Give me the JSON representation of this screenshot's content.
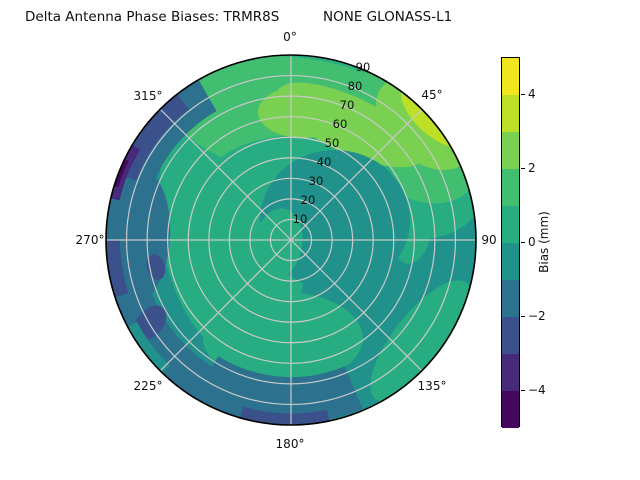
{
  "title": {
    "left": "Delta Antenna Phase Biases: TRMR8S",
    "right": "NONE GLONASS-L1"
  },
  "polar": {
    "angular_labels": [
      "0°",
      "45°",
      "90",
      "135°",
      "180°",
      "225°",
      "270°",
      "315°"
    ],
    "radial_labels": [
      "10",
      "20",
      "30",
      "40",
      "50",
      "60",
      "70",
      "80",
      "90"
    ]
  },
  "colorbar": {
    "label": "Bias (mm)",
    "ticks": [
      {
        "text": "4",
        "value": 4
      },
      {
        "text": "2",
        "value": 2
      },
      {
        "text": "0",
        "value": 0
      },
      {
        "text": "−2",
        "value": -2
      },
      {
        "text": "−4",
        "value": -4
      }
    ],
    "band_colors_top_to_bottom": [
      "#f1e51d",
      "#bddf26",
      "#7ad151",
      "#42be71",
      "#27ad81",
      "#21918c",
      "#2c718e",
      "#3b518b",
      "#472a7a",
      "#46085c"
    ]
  },
  "colors": {
    "v0": "#46085c",
    "v1": "#472a7a",
    "v2": "#3b518b",
    "v3": "#2c718e",
    "v4": "#21918c",
    "v5": "#27ad81",
    "v6": "#42be71",
    "v7": "#7ad151",
    "v8": "#bddf26",
    "v9": "#f1e51d",
    "grid": "#c9c9c9",
    "outline": "#000000"
  },
  "chart_data": {
    "type": "heatmap",
    "projection": "polar",
    "title": "Delta Antenna Phase Biases: TRMR8S        NONE GLONASS-L1",
    "colorbar_label": "Bias (mm)",
    "colormap": "viridis, 10 discrete bands",
    "value_range_mm": [
      -5,
      5
    ],
    "contour_levels_mm": [
      -5,
      -4,
      -3,
      -2,
      -1,
      0,
      1,
      2,
      3,
      4,
      5
    ],
    "azimuth_ticks_deg": [
      0,
      45,
      90,
      135,
      180,
      225,
      270,
      315
    ],
    "radial_ticks_deg": [
      10,
      20,
      30,
      40,
      50,
      60,
      70,
      80,
      90
    ],
    "legend_position": "right colorbar",
    "grid": true,
    "features": [
      {
        "region": "outer edge near azimuth 45°",
        "bias_mm": "+3 to +5",
        "note": "maximum, yellow-green/yellow wedge"
      },
      {
        "region": "north lobe, azimuth ~345°–25°, radius 55–90",
        "bias_mm": "+2 to +3",
        "note": "light green blob"
      },
      {
        "region": "broad arc across top and NE edge",
        "bias_mm": "+1 to +2",
        "note": "green band"
      },
      {
        "region": "center-left, south blob, SE edge band, east mid blob",
        "bias_mm": "0 to +1",
        "note": "teal-green"
      },
      {
        "region": "center, east and most mid-radius areas",
        "bias_mm": "-1 to 0",
        "note": "teal background"
      },
      {
        "region": "outer ring west (az 195°–330°) and south (az 155°–215°)",
        "bias_mm": "-2 to -1"
      },
      {
        "region": "northwest edge az 290°–320°, south edge az 168°–196°, small SW patches",
        "bias_mm": "-3 to -2"
      },
      {
        "region": "west edge sliver az 283°–301°",
        "bias_mm": "-5 to -3",
        "note": "minimum, indigo/dark purple"
      }
    ]
  }
}
